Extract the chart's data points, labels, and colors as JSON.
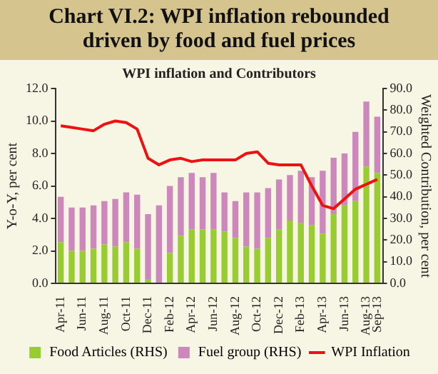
{
  "chart_data": {
    "type": "bar",
    "title": "Chart VI.2: WPI inflation rebounded driven by food and fuel prices",
    "subtitle": "WPI inflation and Contributors",
    "ylabel": "Y-o-Y, per cent",
    "y2label": "Weighted Contribution, per cent",
    "categories": [
      "Apr-11",
      null,
      "Jun-11",
      null,
      "Aug-11",
      null,
      "Oct-11",
      null,
      "Dec-11",
      null,
      "Feb-12",
      null,
      "Apr-12",
      null,
      "Jun-12",
      null,
      "Aug-12",
      null,
      "Oct-12",
      null,
      "Dec-12",
      null,
      "Feb-13",
      null,
      "Apr-13",
      null,
      "Jun-13",
      null,
      "Aug-13",
      "Sep-13"
    ],
    "stacked": true,
    "series": [
      {
        "name": "Food Articles (RHS)",
        "axis": "y2",
        "color": "#99cc33",
        "values": [
          19,
          15,
          15,
          16,
          18,
          17,
          19,
          16,
          2,
          0,
          14,
          22,
          25,
          25,
          25,
          24,
          21,
          17,
          16,
          21,
          25,
          29,
          28,
          27,
          23,
          32,
          36,
          38,
          54,
          51
        ]
      },
      {
        "name": "Fuel group (RHS)",
        "axis": "y2",
        "color": "#cc88bb",
        "values": [
          21,
          20,
          20,
          20,
          20,
          22,
          23,
          25,
          30,
          36,
          31,
          27,
          26,
          24,
          26,
          18,
          17,
          25,
          26,
          23,
          23,
          21,
          24,
          22,
          29,
          26,
          24,
          32,
          30,
          26
        ]
      },
      {
        "name": "WPI Inflation",
        "type": "line",
        "axis": "y",
        "color": "#ee1111",
        "values": [
          9.7,
          9.6,
          9.5,
          9.4,
          9.8,
          10.0,
          9.9,
          9.5,
          7.7,
          7.3,
          7.6,
          7.7,
          7.5,
          7.6,
          7.6,
          7.6,
          7.6,
          8.0,
          8.1,
          7.4,
          7.3,
          7.3,
          7.3,
          6.0,
          4.8,
          4.6,
          5.2,
          5.8,
          6.1,
          6.4
        ]
      }
    ],
    "ylim": [
      0,
      12
    ],
    "yticks": [
      {
        "value": 0,
        "label": "0.0"
      },
      {
        "value": 2,
        "label": "2.0"
      },
      {
        "value": 4,
        "label": "4.0"
      },
      {
        "value": 6,
        "label": "6.0"
      },
      {
        "value": 8,
        "label": "8.0"
      },
      {
        "value": 10,
        "label": "10.0"
      },
      {
        "value": 12,
        "label": "12.0"
      }
    ],
    "y2lim": [
      0,
      90
    ],
    "y2ticks": [
      {
        "value": 0,
        "label": "0.0"
      },
      {
        "value": 10,
        "label": "10.0"
      },
      {
        "value": 20,
        "label": "20.0"
      },
      {
        "value": 30,
        "label": "30.0"
      },
      {
        "value": 40,
        "label": "40.0"
      },
      {
        "value": 50,
        "label": "50.0"
      },
      {
        "value": 60,
        "label": "60.0"
      },
      {
        "value": 70,
        "label": "70.0"
      },
      {
        "value": 80,
        "label": "80.0"
      },
      {
        "value": 90,
        "label": "90.0"
      }
    ],
    "legend": "bottom",
    "marker": "none",
    "line_style": "solid"
  }
}
